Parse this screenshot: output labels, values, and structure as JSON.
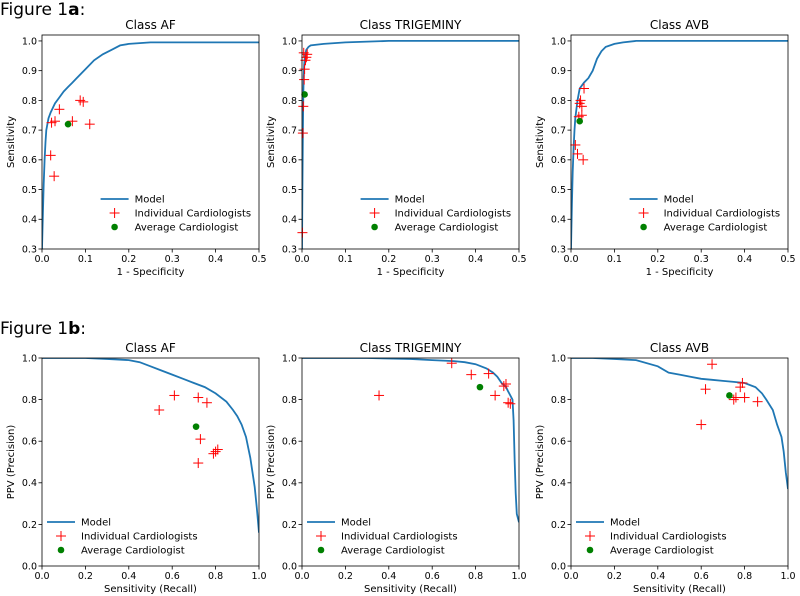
{
  "figure_labels": [
    {
      "prefix": "Figure 1",
      "letter": "a",
      "suffix": ":"
    },
    {
      "prefix": "Figure 1",
      "letter": "b",
      "suffix": ":"
    }
  ],
  "colors": {
    "model": "#1f77b4",
    "individual": "#ff0000",
    "average": "#008000"
  },
  "chart_data": [
    {
      "type": "line",
      "row": 0,
      "title": "Class AF",
      "xlabel": "1 - Specificity",
      "ylabel": "Sensitivity",
      "xlim": [
        0,
        0.5
      ],
      "ylim": [
        0.3,
        1.02
      ],
      "xticks": [
        0,
        0.1,
        0.2,
        0.3,
        0.4,
        0.5
      ],
      "xticklabels": [
        "0.0",
        "0.1",
        "0.2",
        "0.3",
        "0.4",
        "0.5"
      ],
      "yticks": [
        0.3,
        0.4,
        0.5,
        0.6,
        0.7,
        0.8,
        0.9,
        1.0
      ],
      "yticklabels": [
        "0.3",
        "0.4",
        "0.5",
        "0.6",
        "0.7",
        "0.8",
        "0.9",
        "1.0"
      ],
      "legend": [
        "Model",
        "Individual Cardiologists",
        "Average Cardiologist"
      ],
      "legend_loc": "lower-right",
      "model": {
        "x": [
          0,
          0.002,
          0.004,
          0.006,
          0.008,
          0.01,
          0.015,
          0.02,
          0.03,
          0.04,
          0.05,
          0.06,
          0.07,
          0.08,
          0.1,
          0.12,
          0.14,
          0.16,
          0.18,
          0.2,
          0.25,
          0.3,
          0.4,
          0.5
        ],
        "y": [
          0.3,
          0.42,
          0.52,
          0.6,
          0.66,
          0.7,
          0.74,
          0.76,
          0.79,
          0.81,
          0.83,
          0.845,
          0.86,
          0.875,
          0.905,
          0.935,
          0.955,
          0.97,
          0.985,
          0.99,
          0.995,
          0.995,
          0.995,
          0.995
        ]
      },
      "individual": {
        "x": [
          0.02,
          0.022,
          0.028,
          0.04,
          0.07,
          0.088,
          0.095,
          0.11,
          0.03
        ],
        "y": [
          0.615,
          0.725,
          0.545,
          0.77,
          0.73,
          0.8,
          0.795,
          0.72,
          0.73
        ]
      },
      "average": {
        "x": [
          0.06
        ],
        "y": [
          0.72
        ]
      }
    },
    {
      "type": "line",
      "row": 0,
      "title": "Class TRIGEMINY",
      "xlabel": "1 - Specificity",
      "ylabel": "Sensitivity",
      "xlim": [
        0,
        0.5
      ],
      "ylim": [
        0.3,
        1.02
      ],
      "xticks": [
        0,
        0.1,
        0.2,
        0.3,
        0.4,
        0.5
      ],
      "xticklabels": [
        "0.0",
        "0.1",
        "0.2",
        "0.3",
        "0.4",
        "0.5"
      ],
      "yticks": [
        0.3,
        0.4,
        0.5,
        0.6,
        0.7,
        0.8,
        0.9,
        1.0
      ],
      "yticklabels": [
        "0.3",
        "0.4",
        "0.5",
        "0.6",
        "0.7",
        "0.8",
        "0.9",
        "1.0"
      ],
      "legend": [
        "Model",
        "Individual Cardiologists",
        "Average Cardiologist"
      ],
      "legend_loc": "lower-right",
      "model": {
        "x": [
          0,
          0.001,
          0.002,
          0.003,
          0.004,
          0.005,
          0.007,
          0.01,
          0.015,
          0.02,
          0.05,
          0.1,
          0.2,
          0.3,
          0.5
        ],
        "y": [
          0.3,
          0.5,
          0.7,
          0.82,
          0.88,
          0.92,
          0.95,
          0.97,
          0.98,
          0.985,
          0.99,
          0.995,
          1.0,
          1.0,
          1.0
        ]
      },
      "individual": {
        "x": [
          0.001,
          0.002,
          0.003,
          0.005,
          0.006,
          0.008,
          0.01,
          0.012,
          0.004
        ],
        "y": [
          0.355,
          0.69,
          0.78,
          0.87,
          0.905,
          0.935,
          0.945,
          0.955,
          0.96
        ]
      },
      "average": {
        "x": [
          0.006
        ],
        "y": [
          0.82
        ]
      }
    },
    {
      "type": "line",
      "row": 0,
      "title": "Class AVB",
      "xlabel": "1 - Specificity",
      "ylabel": "Sensitivity",
      "xlim": [
        0,
        0.5
      ],
      "ylim": [
        0.3,
        1.02
      ],
      "xticks": [
        0,
        0.1,
        0.2,
        0.3,
        0.4,
        0.5
      ],
      "xticklabels": [
        "0.0",
        "0.1",
        "0.2",
        "0.3",
        "0.4",
        "0.5"
      ],
      "yticks": [
        0.3,
        0.4,
        0.5,
        0.6,
        0.7,
        0.8,
        0.9,
        1.0
      ],
      "yticklabels": [
        "0.3",
        "0.4",
        "0.5",
        "0.6",
        "0.7",
        "0.8",
        "0.9",
        "1.0"
      ],
      "legend": [
        "Model",
        "Individual Cardiologists",
        "Average Cardiologist"
      ],
      "legend_loc": "lower-right",
      "model": {
        "x": [
          0,
          0.002,
          0.004,
          0.006,
          0.008,
          0.01,
          0.015,
          0.02,
          0.03,
          0.04,
          0.05,
          0.06,
          0.07,
          0.08,
          0.1,
          0.12,
          0.15,
          0.2,
          0.3,
          0.5
        ],
        "y": [
          0.3,
          0.45,
          0.56,
          0.64,
          0.7,
          0.74,
          0.8,
          0.84,
          0.86,
          0.875,
          0.9,
          0.94,
          0.965,
          0.98,
          0.99,
          0.995,
          1.0,
          1.0,
          1.0,
          1.0
        ]
      },
      "individual": {
        "x": [
          0.01,
          0.015,
          0.018,
          0.02,
          0.022,
          0.025,
          0.028,
          0.03,
          0.025
        ],
        "y": [
          0.65,
          0.62,
          0.745,
          0.79,
          0.8,
          0.78,
          0.6,
          0.84,
          0.75
        ]
      },
      "average": {
        "x": [
          0.02
        ],
        "y": [
          0.73
        ]
      }
    },
    {
      "type": "line",
      "row": 1,
      "title": "Class AF",
      "xlabel": "Sensitivity (Recall)",
      "ylabel": "PPV (Precision)",
      "xlim": [
        0,
        1.0
      ],
      "ylim": [
        0,
        1.0
      ],
      "xticks": [
        0,
        0.2,
        0.4,
        0.6,
        0.8,
        1.0
      ],
      "xticklabels": [
        "0.0",
        "0.2",
        "0.4",
        "0.6",
        "0.8",
        "1.0"
      ],
      "yticks": [
        0,
        0.2,
        0.4,
        0.6,
        0.8,
        1.0
      ],
      "yticklabels": [
        "0.0",
        "0.2",
        "0.4",
        "0.6",
        "0.8",
        "1.0"
      ],
      "legend": [
        "Model",
        "Individual Cardiologists",
        "Average Cardiologist"
      ],
      "legend_loc": "lower-left",
      "model": {
        "x": [
          0,
          0.2,
          0.3,
          0.4,
          0.45,
          0.5,
          0.55,
          0.6,
          0.65,
          0.7,
          0.75,
          0.8,
          0.85,
          0.88,
          0.9,
          0.92,
          0.94,
          0.96,
          0.97,
          0.98,
          0.99,
          1.0
        ],
        "y": [
          1.0,
          1.0,
          0.995,
          0.99,
          0.98,
          0.96,
          0.94,
          0.92,
          0.9,
          0.88,
          0.86,
          0.83,
          0.79,
          0.75,
          0.72,
          0.68,
          0.62,
          0.52,
          0.45,
          0.38,
          0.28,
          0.16
        ]
      },
      "individual": {
        "x": [
          0.54,
          0.61,
          0.72,
          0.76,
          0.73,
          0.72,
          0.8,
          0.81,
          0.79
        ],
        "y": [
          0.75,
          0.82,
          0.81,
          0.785,
          0.61,
          0.495,
          0.55,
          0.56,
          0.54
        ]
      },
      "average": {
        "x": [
          0.71
        ],
        "y": [
          0.67
        ]
      }
    },
    {
      "type": "line",
      "row": 1,
      "title": "Class TRIGEMINY",
      "xlabel": "Sensitivity (Recall)",
      "ylabel": "PPV (Precision)",
      "xlim": [
        0,
        1.0
      ],
      "ylim": [
        0,
        1.0
      ],
      "xticks": [
        0,
        0.2,
        0.4,
        0.6,
        0.8,
        1.0
      ],
      "xticklabels": [
        "0.0",
        "0.2",
        "0.4",
        "0.6",
        "0.8",
        "1.0"
      ],
      "yticks": [
        0,
        0.2,
        0.4,
        0.6,
        0.8,
        1.0
      ],
      "yticklabels": [
        "0.0",
        "0.2",
        "0.4",
        "0.6",
        "0.8",
        "1.0"
      ],
      "legend": [
        "Model",
        "Individual Cardiologists",
        "Average Cardiologist"
      ],
      "legend_loc": "lower-left",
      "model": {
        "x": [
          0,
          0.3,
          0.5,
          0.6,
          0.7,
          0.75,
          0.8,
          0.85,
          0.88,
          0.9,
          0.92,
          0.94,
          0.95,
          0.96,
          0.97,
          0.975,
          0.98,
          0.985,
          0.99,
          1.0
        ],
        "y": [
          1.0,
          1.0,
          0.995,
          0.99,
          0.985,
          0.98,
          0.97,
          0.95,
          0.93,
          0.91,
          0.88,
          0.86,
          0.84,
          0.82,
          0.8,
          0.7,
          0.5,
          0.35,
          0.25,
          0.21
        ]
      },
      "individual": {
        "x": [
          0.355,
          0.69,
          0.78,
          0.86,
          0.89,
          0.93,
          0.95,
          0.96,
          0.94
        ],
        "y": [
          0.82,
          0.975,
          0.92,
          0.925,
          0.82,
          0.865,
          0.785,
          0.78,
          0.875
        ]
      },
      "average": {
        "x": [
          0.82
        ],
        "y": [
          0.86
        ]
      }
    },
    {
      "type": "line",
      "row": 1,
      "title": "Class AVB",
      "xlabel": "Sensitivity (Recall)",
      "ylabel": "PPV (Precision)",
      "xlim": [
        0,
        1.0
      ],
      "ylim": [
        0,
        1.0
      ],
      "xticks": [
        0,
        0.2,
        0.4,
        0.6,
        0.8,
        1.0
      ],
      "xticklabels": [
        "0.0",
        "0.2",
        "0.4",
        "0.6",
        "0.8",
        "1.0"
      ],
      "yticks": [
        0,
        0.2,
        0.4,
        0.6,
        0.8,
        1.0
      ],
      "yticklabels": [
        "0.0",
        "0.2",
        "0.4",
        "0.6",
        "0.8",
        "1.0"
      ],
      "legend": [
        "Model",
        "Individual Cardiologists",
        "Average Cardiologist"
      ],
      "legend_loc": "lower-left",
      "model": {
        "x": [
          0,
          0.1,
          0.2,
          0.3,
          0.4,
          0.45,
          0.5,
          0.55,
          0.6,
          0.65,
          0.7,
          0.75,
          0.8,
          0.85,
          0.88,
          0.9,
          0.93,
          0.95,
          0.97,
          0.98,
          0.99,
          1.0
        ],
        "y": [
          1.0,
          1.0,
          0.995,
          0.99,
          0.96,
          0.93,
          0.92,
          0.91,
          0.9,
          0.895,
          0.89,
          0.885,
          0.88,
          0.86,
          0.83,
          0.8,
          0.75,
          0.68,
          0.62,
          0.55,
          0.45,
          0.37
        ]
      },
      "individual": {
        "x": [
          0.6,
          0.62,
          0.65,
          0.75,
          0.76,
          0.79,
          0.8,
          0.86,
          0.78
        ],
        "y": [
          0.68,
          0.85,
          0.97,
          0.8,
          0.81,
          0.88,
          0.81,
          0.79,
          0.86
        ]
      },
      "average": {
        "x": [
          0.73
        ],
        "y": [
          0.82
        ]
      }
    }
  ]
}
